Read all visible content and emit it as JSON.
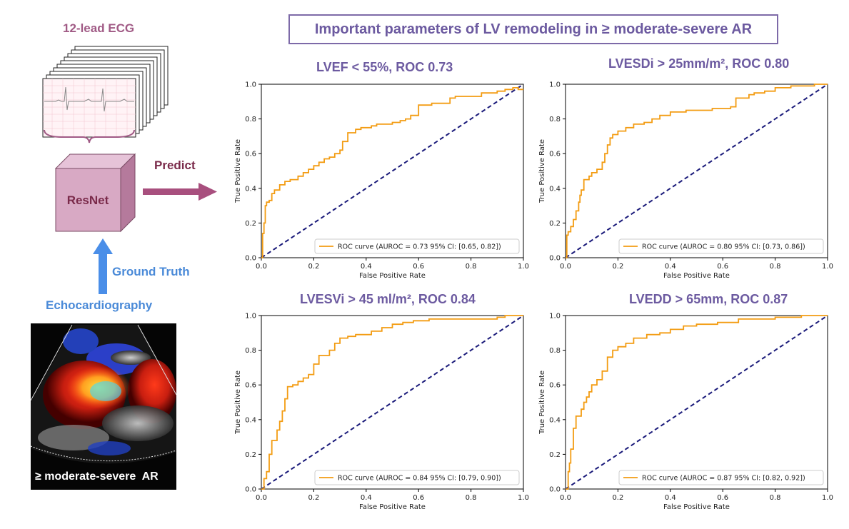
{
  "header": {
    "title": "Important parameters of LV remodeling in ≥ moderate-severe AR"
  },
  "left": {
    "ecg_label": "12-lead ECG",
    "model_label": "ResNet",
    "predict_label": "Predict",
    "ground_truth_label": "Ground Truth",
    "echo_label": "Echocardiography",
    "echo_caption": "≥ moderate-severe  AR"
  },
  "colors": {
    "roc": "#f39c12",
    "diag": "#1a1a7a",
    "title": "#6c5aa0",
    "accent_blue": "#4a8ad8",
    "cube": "#d8a9c4"
  },
  "chart_data": [
    {
      "type": "line",
      "title": "LVEF < 55%, ROC 0.73",
      "xlabel": "False Positive Rate",
      "ylabel": "True Positive Rate",
      "xlim": [
        0,
        1
      ],
      "ylim": [
        0,
        1
      ],
      "x_ticks": [
        "0.0",
        "0.2",
        "0.4",
        "0.6",
        "0.8",
        "1.0"
      ],
      "y_ticks": [
        "0.0",
        "0.2",
        "0.4",
        "0.6",
        "0.8",
        "1.0"
      ],
      "legend": "ROC curve (AUROC = 0.73 95% CI: [0.65, 0.82])",
      "legend_position": "lower-right",
      "series": [
        {
          "name": "ROC curve (AUROC = 0.73 95% CI: [0.65, 0.82])",
          "x": [
            0,
            0.005,
            0.005,
            0.01,
            0.01,
            0.015,
            0.015,
            0.02,
            0.02,
            0.03,
            0.03,
            0.04,
            0.04,
            0.05,
            0.05,
            0.07,
            0.07,
            0.09,
            0.09,
            0.11,
            0.11,
            0.14,
            0.14,
            0.16,
            0.16,
            0.18,
            0.18,
            0.2,
            0.2,
            0.22,
            0.22,
            0.24,
            0.24,
            0.26,
            0.26,
            0.28,
            0.28,
            0.3,
            0.3,
            0.31,
            0.31,
            0.33,
            0.33,
            0.36,
            0.36,
            0.38,
            0.38,
            0.42,
            0.42,
            0.44,
            0.44,
            0.5,
            0.5,
            0.53,
            0.53,
            0.55,
            0.55,
            0.57,
            0.57,
            0.6,
            0.6,
            0.65,
            0.65,
            0.72,
            0.72,
            0.74,
            0.74,
            0.84,
            0.84,
            0.9,
            0.9,
            0.93,
            0.93,
            0.96,
            0.96,
            0.98,
            0.98,
            1.0
          ],
          "y": [
            0,
            0,
            0.14,
            0.14,
            0.2,
            0.2,
            0.3,
            0.3,
            0.32,
            0.32,
            0.33,
            0.33,
            0.37,
            0.37,
            0.39,
            0.39,
            0.42,
            0.42,
            0.44,
            0.44,
            0.45,
            0.45,
            0.47,
            0.47,
            0.49,
            0.49,
            0.51,
            0.51,
            0.53,
            0.53,
            0.55,
            0.55,
            0.57,
            0.57,
            0.58,
            0.58,
            0.6,
            0.6,
            0.62,
            0.62,
            0.67,
            0.67,
            0.72,
            0.72,
            0.74,
            0.74,
            0.75,
            0.75,
            0.76,
            0.76,
            0.77,
            0.77,
            0.78,
            0.78,
            0.79,
            0.79,
            0.8,
            0.8,
            0.82,
            0.82,
            0.88,
            0.88,
            0.89,
            0.89,
            0.92,
            0.92,
            0.93,
            0.93,
            0.95,
            0.95,
            0.96,
            0.96,
            0.97,
            0.97,
            0.98,
            0.98,
            0.97,
            0.97
          ]
        }
      ]
    },
    {
      "type": "line",
      "title": "LVESDi > 25mm/m², ROC 0.80",
      "xlabel": "False Positive Rate",
      "ylabel": "True Positive Rate",
      "xlim": [
        0,
        1
      ],
      "ylim": [
        0,
        1
      ],
      "x_ticks": [
        "0.0",
        "0.2",
        "0.4",
        "0.6",
        "0.8",
        "1.0"
      ],
      "y_ticks": [
        "0.0",
        "0.2",
        "0.4",
        "0.6",
        "0.8",
        "1.0"
      ],
      "legend": "ROC curve (AUROC = 0.80 95% CI: [0.73, 0.86])",
      "legend_position": "lower-right",
      "series": [
        {
          "name": "ROC curve (AUROC = 0.80 95% CI: [0.73, 0.86])",
          "x": [
            0,
            0.005,
            0.005,
            0.01,
            0.01,
            0.02,
            0.02,
            0.03,
            0.03,
            0.04,
            0.04,
            0.05,
            0.05,
            0.055,
            0.055,
            0.06,
            0.06,
            0.07,
            0.07,
            0.09,
            0.09,
            0.1,
            0.1,
            0.12,
            0.12,
            0.14,
            0.14,
            0.15,
            0.15,
            0.16,
            0.16,
            0.17,
            0.17,
            0.18,
            0.18,
            0.2,
            0.2,
            0.23,
            0.23,
            0.26,
            0.26,
            0.3,
            0.3,
            0.33,
            0.33,
            0.36,
            0.36,
            0.4,
            0.4,
            0.46,
            0.46,
            0.56,
            0.56,
            0.63,
            0.63,
            0.65,
            0.65,
            0.7,
            0.7,
            0.72,
            0.72,
            0.76,
            0.76,
            0.8,
            0.8,
            0.86,
            0.86,
            0.95,
            0.95,
            1.0
          ],
          "y": [
            0,
            0,
            0.13,
            0.13,
            0.15,
            0.15,
            0.18,
            0.18,
            0.22,
            0.22,
            0.27,
            0.27,
            0.32,
            0.32,
            0.36,
            0.36,
            0.39,
            0.39,
            0.45,
            0.45,
            0.47,
            0.47,
            0.49,
            0.49,
            0.51,
            0.51,
            0.55,
            0.55,
            0.6,
            0.6,
            0.65,
            0.65,
            0.69,
            0.69,
            0.71,
            0.71,
            0.73,
            0.73,
            0.75,
            0.75,
            0.77,
            0.77,
            0.78,
            0.78,
            0.8,
            0.8,
            0.82,
            0.82,
            0.84,
            0.84,
            0.85,
            0.85,
            0.86,
            0.86,
            0.87,
            0.87,
            0.92,
            0.92,
            0.94,
            0.94,
            0.95,
            0.95,
            0.96,
            0.96,
            0.98,
            0.98,
            0.99,
            0.99,
            1.0,
            1.0
          ]
        }
      ]
    },
    {
      "type": "line",
      "title": "LVESVi > 45 ml/m², ROC 0.84",
      "xlabel": "False Positive Rate",
      "ylabel": "True Positive Rate",
      "xlim": [
        0,
        1
      ],
      "ylim": [
        0,
        1
      ],
      "x_ticks": [
        "0.0",
        "0.2",
        "0.4",
        "0.6",
        "0.8",
        "1.0"
      ],
      "y_ticks": [
        "0.0",
        "0.2",
        "0.4",
        "0.6",
        "0.8",
        "1.0"
      ],
      "legend": "ROC curve (AUROC = 0.84 95% CI: [0.79, 0.90])",
      "legend_position": "lower-right",
      "series": [
        {
          "name": "ROC curve (AUROC = 0.84 95% CI: [0.79, 0.90])",
          "x": [
            0,
            0.01,
            0.01,
            0.02,
            0.02,
            0.03,
            0.03,
            0.04,
            0.04,
            0.06,
            0.06,
            0.07,
            0.07,
            0.08,
            0.08,
            0.09,
            0.09,
            0.1,
            0.1,
            0.12,
            0.12,
            0.14,
            0.14,
            0.16,
            0.16,
            0.18,
            0.18,
            0.2,
            0.2,
            0.22,
            0.22,
            0.26,
            0.26,
            0.28,
            0.28,
            0.3,
            0.3,
            0.33,
            0.33,
            0.36,
            0.36,
            0.42,
            0.42,
            0.46,
            0.46,
            0.5,
            0.5,
            0.54,
            0.54,
            0.58,
            0.58,
            0.64,
            0.64,
            0.82,
            0.82,
            0.9,
            0.9,
            0.93,
            0.93,
            1.0
          ],
          "y": [
            0,
            0,
            0.06,
            0.06,
            0.1,
            0.1,
            0.2,
            0.2,
            0.28,
            0.28,
            0.34,
            0.34,
            0.39,
            0.39,
            0.45,
            0.45,
            0.52,
            0.52,
            0.59,
            0.59,
            0.6,
            0.6,
            0.62,
            0.62,
            0.64,
            0.64,
            0.66,
            0.66,
            0.72,
            0.72,
            0.77,
            0.77,
            0.8,
            0.8,
            0.84,
            0.84,
            0.87,
            0.87,
            0.88,
            0.88,
            0.89,
            0.89,
            0.91,
            0.91,
            0.93,
            0.93,
            0.95,
            0.95,
            0.96,
            0.96,
            0.97,
            0.97,
            0.98,
            0.98,
            0.98,
            0.98,
            0.99,
            0.99,
            1.0,
            1.0
          ]
        }
      ]
    },
    {
      "type": "line",
      "title": "LVEDD > 65mm, ROC 0.87",
      "xlabel": "False Positive Rate",
      "ylabel": "True Positive Rate",
      "xlim": [
        0,
        1
      ],
      "ylim": [
        0,
        1
      ],
      "x_ticks": [
        "0.0",
        "0.2",
        "0.4",
        "0.6",
        "0.8",
        "1.0"
      ],
      "y_ticks": [
        "0.0",
        "0.2",
        "0.4",
        "0.6",
        "0.8",
        "1.0"
      ],
      "legend": "ROC curve (AUROC = 0.87 95% CI: [0.82, 0.92])",
      "legend_position": "lower-right",
      "series": [
        {
          "name": "ROC curve (AUROC = 0.87 95% CI: [0.82, 0.92])",
          "x": [
            0,
            0.01,
            0.01,
            0.015,
            0.015,
            0.02,
            0.02,
            0.03,
            0.03,
            0.04,
            0.04,
            0.06,
            0.06,
            0.07,
            0.07,
            0.08,
            0.08,
            0.09,
            0.09,
            0.1,
            0.1,
            0.12,
            0.12,
            0.14,
            0.14,
            0.16,
            0.16,
            0.18,
            0.18,
            0.2,
            0.2,
            0.23,
            0.23,
            0.26,
            0.26,
            0.31,
            0.31,
            0.36,
            0.36,
            0.4,
            0.4,
            0.45,
            0.45,
            0.5,
            0.5,
            0.58,
            0.58,
            0.66,
            0.66,
            0.8,
            0.8,
            0.9,
            0.9,
            1.0
          ],
          "y": [
            0,
            0,
            0.1,
            0.1,
            0.15,
            0.15,
            0.23,
            0.23,
            0.35,
            0.35,
            0.42,
            0.42,
            0.46,
            0.46,
            0.5,
            0.5,
            0.53,
            0.53,
            0.56,
            0.56,
            0.6,
            0.6,
            0.63,
            0.63,
            0.68,
            0.68,
            0.76,
            0.76,
            0.8,
            0.8,
            0.82,
            0.82,
            0.84,
            0.84,
            0.87,
            0.87,
            0.89,
            0.89,
            0.9,
            0.9,
            0.92,
            0.92,
            0.94,
            0.94,
            0.95,
            0.95,
            0.96,
            0.96,
            0.98,
            0.98,
            0.99,
            0.99,
            1.0,
            1.0
          ]
        }
      ]
    }
  ]
}
